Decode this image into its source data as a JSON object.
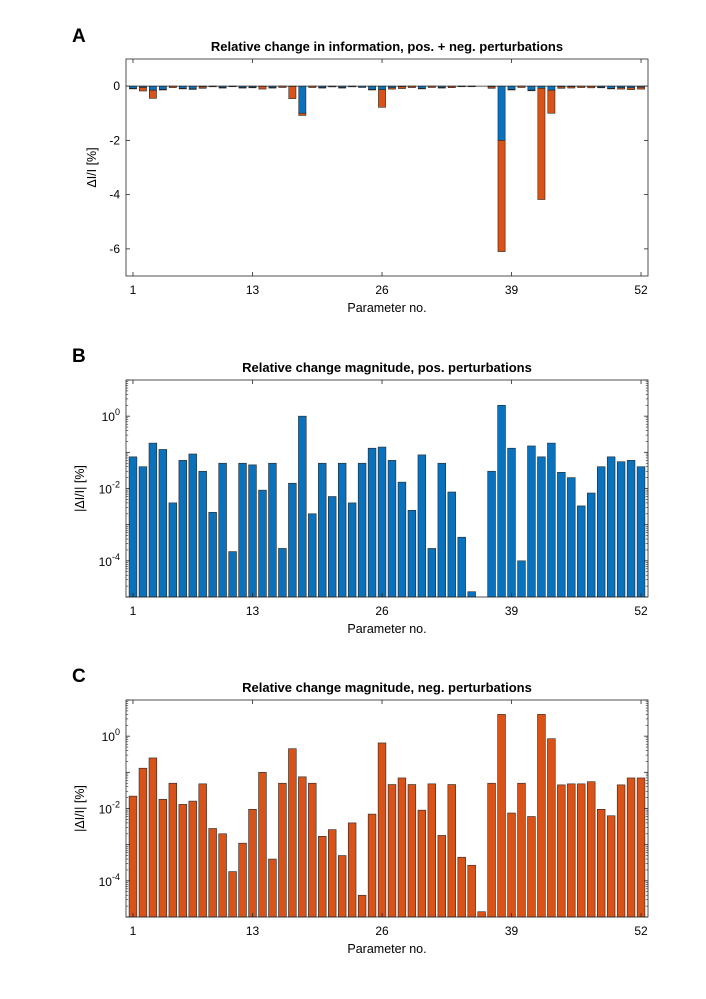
{
  "colors": {
    "pos": "#0a72bd",
    "neg": "#d95319"
  },
  "chart_data": [
    {
      "panel": "A",
      "type": "bar",
      "title": "Relative change in information, pos. + neg. perturbations",
      "xlabel": "Parameter no.",
      "ylabel": "ΔI/I [%]",
      "xticks": [
        1,
        13,
        26,
        39,
        52
      ],
      "yticks": [
        0,
        -2,
        -4,
        -6
      ],
      "ylim": [
        -7,
        1
      ],
      "grid": false,
      "series": [
        {
          "name": "pos. perturbations",
          "values": [
            -0.08,
            -0.05,
            -0.15,
            -0.12,
            -0.004,
            -0.08,
            -0.1,
            -0.03,
            -0.002,
            -0.05,
            -0.0002,
            -0.05,
            -0.04,
            -0.009,
            -0.05,
            -0.0002,
            -0.01,
            -1.0,
            -0.002,
            -0.05,
            -0.006,
            -0.05,
            -0.004,
            -0.05,
            -0.12,
            -0.13,
            -0.06,
            -0.02,
            -0.003,
            -0.08,
            -0.0002,
            -0.05,
            -0.008,
            -0.0004,
            -0.0001,
            0,
            -0.03,
            -2.0,
            -0.12,
            -0.0001,
            -0.15,
            -0.08,
            -0.15,
            -0.03,
            -0.02,
            -0.003,
            -0.008,
            -0.04,
            -0.08,
            -0.06,
            -0.06,
            -0.04
          ]
        },
        {
          "name": "neg. perturbations",
          "values": [
            -0.02,
            -0.13,
            -0.3,
            -0.02,
            -0.05,
            -0.012,
            -0.015,
            -0.05,
            -0.003,
            -0.002,
            -0.0002,
            -0.001,
            -0.01,
            -0.1,
            -0.0004,
            -0.05,
            -0.45,
            -0.08,
            -0.05,
            -0.002,
            -0.005,
            -0.0005,
            -0.004,
            0,
            -0.007,
            -0.65,
            -0.05,
            -0.07,
            -0.05,
            -0.01,
            -0.05,
            -0.002,
            -0.05,
            -0.0004,
            -0.0002,
            0,
            -0.05,
            -4.1,
            -0.008,
            -0.05,
            -0.006,
            -4.1,
            -0.85,
            -0.05,
            -0.05,
            -0.05,
            -0.055,
            -0.01,
            -0.006,
            -0.05,
            -0.07,
            -0.07
          ]
        }
      ]
    },
    {
      "panel": "B",
      "type": "bar",
      "title": "Relative change magnitude, pos. perturbations",
      "xlabel": "Parameter no.",
      "ylabel": "|ΔI/I| [%]",
      "yscale": "log",
      "xticks": [
        1,
        13,
        26,
        39,
        52
      ],
      "ytick_exponents": [
        0,
        -2,
        -4
      ],
      "ylim": [
        1e-05,
        10
      ],
      "grid": false,
      "series": [
        {
          "name": "pos. perturbations",
          "values": [
            0.075,
            0.04,
            0.18,
            0.12,
            0.004,
            0.06,
            0.09,
            0.03,
            0.0022,
            0.05,
            0.00018,
            0.05,
            0.045,
            0.009,
            0.05,
            0.00022,
            0.014,
            1.0,
            0.002,
            0.05,
            0.006,
            0.05,
            0.004,
            0.05,
            0.13,
            0.14,
            0.06,
            0.015,
            0.0025,
            0.085,
            0.00022,
            0.05,
            0.008,
            0.00045,
            1.4e-05,
            0,
            0.03,
            2.0,
            0.13,
            0.0001,
            0.15,
            0.075,
            0.18,
            0.028,
            0.02,
            0.0033,
            0.0075,
            0.04,
            0.075,
            0.055,
            0.06,
            0.04
          ]
        }
      ]
    },
    {
      "panel": "C",
      "type": "bar",
      "title": "Relative change magnitude, neg. perturbations",
      "xlabel": "Parameter no.",
      "ylabel": "|ΔI/I| [%]",
      "yscale": "log",
      "xticks": [
        1,
        13,
        26,
        39,
        52
      ],
      "ytick_exponents": [
        0,
        -2,
        -4
      ],
      "ylim": [
        1e-05,
        10
      ],
      "grid": false,
      "series": [
        {
          "name": "neg. perturbations",
          "values": [
            0.022,
            0.13,
            0.25,
            0.018,
            0.05,
            0.013,
            0.016,
            0.048,
            0.0028,
            0.002,
            0.00018,
            0.0011,
            0.0095,
            0.1,
            0.0004,
            0.05,
            0.45,
            0.075,
            0.05,
            0.0017,
            0.0026,
            0.0005,
            0.004,
            4e-05,
            0.007,
            0.65,
            0.046,
            0.07,
            0.046,
            0.009,
            0.048,
            0.0018,
            0.046,
            0.00045,
            0.00027,
            1.4e-05,
            0.05,
            4.0,
            0.0075,
            0.05,
            0.006,
            4.0,
            0.85,
            0.045,
            0.048,
            0.048,
            0.055,
            0.0095,
            0.0063,
            0.045,
            0.07,
            0.07
          ]
        }
      ]
    }
  ]
}
